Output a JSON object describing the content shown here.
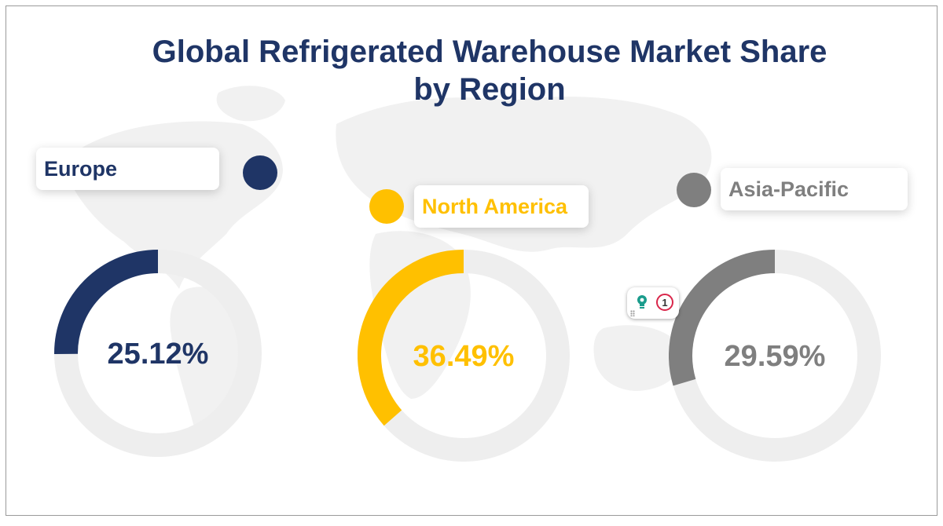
{
  "title_line1": "Global Refrigerated Warehouse Market Share",
  "title_line2": "by Region",
  "chart_data": {
    "type": "donut",
    "title": "Global Refrigerated Warehouse Market Share by Region",
    "unit": "%",
    "series": [
      {
        "name": "Europe",
        "value": 25.12,
        "label": "25.12%",
        "color": "#1f3566"
      },
      {
        "name": "North America",
        "value": 36.49,
        "label": "36.49%",
        "color": "#ffc000"
      },
      {
        "name": "Asia-Pacific",
        "value": 29.59,
        "label": "29.59%",
        "color": "#7f7f7f"
      }
    ],
    "track_color": "#eeeeee"
  },
  "widget": {
    "icon": "lightbulb-icon",
    "badge_count": "1"
  }
}
